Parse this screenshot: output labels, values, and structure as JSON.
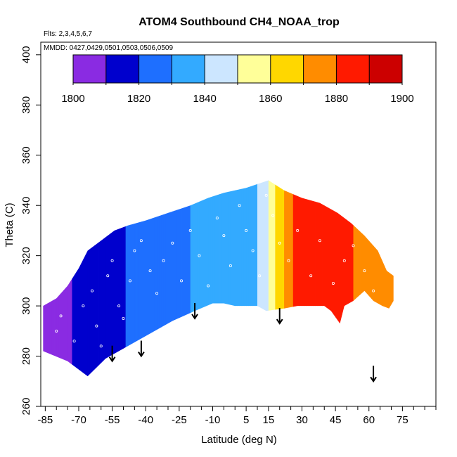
{
  "chart_data": {
    "type": "heatmap",
    "title": "ATOM4 Southbound CH4_NOAA_trop",
    "flights_label": "Flts: 2,3,4,5,6,7",
    "dates_label": "MMDD: 0427,0429,0501,0503,0506,0509",
    "xlabel": "Latitude (deg N)",
    "ylabel": "Theta (C)",
    "xlim": [
      -87,
      90
    ],
    "ylim": [
      260,
      405
    ],
    "x_ticks": [
      -85,
      -70,
      -55,
      -40,
      -25,
      -10,
      5,
      15,
      30,
      45,
      60,
      75
    ],
    "x_minor_step": 5,
    "y_ticks": [
      260,
      280,
      300,
      320,
      340,
      360,
      380,
      400
    ],
    "colorbar": {
      "min": 1800,
      "max": 1900,
      "step": 10,
      "labels": [
        "1800",
        "1820",
        "1840",
        "1860",
        "1880",
        "1900"
      ],
      "colors": [
        "#8a2be2",
        "#0000cd",
        "#1e6fff",
        "#33aaff",
        "#cce6ff",
        "#ffff99",
        "#ffd700",
        "#ff8c00",
        "#ff1a00",
        "#cc0000"
      ]
    },
    "field": {
      "lower_boundary": [
        [
          -86,
          282
        ],
        [
          -75,
          278
        ],
        [
          -66,
          272
        ],
        [
          -58,
          279
        ],
        [
          -48,
          284
        ],
        [
          -38,
          289
        ],
        [
          -28,
          294
        ],
        [
          -18,
          298
        ],
        [
          -10,
          301
        ],
        [
          -5,
          301
        ],
        [
          0,
          300
        ],
        [
          5,
          300
        ],
        [
          10,
          300
        ],
        [
          14,
          298
        ],
        [
          22,
          299
        ],
        [
          28,
          300
        ],
        [
          35,
          300
        ],
        [
          40,
          300
        ],
        [
          43,
          298
        ],
        [
          47,
          293
        ],
        [
          49,
          300
        ],
        [
          53,
          302
        ],
        [
          58,
          306
        ],
        [
          62,
          302
        ],
        [
          66,
          300
        ],
        [
          69,
          299
        ],
        [
          71,
          302
        ]
      ],
      "upper_boundary": [
        [
          -86,
          300
        ],
        [
          -80,
          303
        ],
        [
          -75,
          308
        ],
        [
          -70,
          315
        ],
        [
          -66,
          322
        ],
        [
          -60,
          326
        ],
        [
          -54,
          330
        ],
        [
          -48,
          332
        ],
        [
          -40,
          334
        ],
        [
          -30,
          337
        ],
        [
          -20,
          340
        ],
        [
          -12,
          343
        ],
        [
          -5,
          345
        ],
        [
          5,
          347
        ],
        [
          15,
          350
        ],
        [
          22,
          346
        ],
        [
          30,
          343
        ],
        [
          38,
          341
        ],
        [
          46,
          337
        ],
        [
          52,
          333
        ],
        [
          58,
          328
        ],
        [
          64,
          322
        ],
        [
          68,
          314
        ],
        [
          71,
          312
        ]
      ],
      "profile_by_latitude": [
        {
          "lat": -85,
          "value": 1805
        },
        {
          "lat": -75,
          "value": 1809
        },
        {
          "lat": -65,
          "value": 1813
        },
        {
          "lat": -55,
          "value": 1817
        },
        {
          "lat": -45,
          "value": 1822
        },
        {
          "lat": -35,
          "value": 1826
        },
        {
          "lat": -25,
          "value": 1829
        },
        {
          "lat": -15,
          "value": 1831
        },
        {
          "lat": -5,
          "value": 1833
        },
        {
          "lat": 5,
          "value": 1836
        },
        {
          "lat": 12,
          "value": 1842
        },
        {
          "lat": 16,
          "value": 1852
        },
        {
          "lat": 20,
          "value": 1866
        },
        {
          "lat": 25,
          "value": 1879
        },
        {
          "lat": 30,
          "value": 1883
        },
        {
          "lat": 40,
          "value": 1883
        },
        {
          "lat": 50,
          "value": 1881
        },
        {
          "lat": 60,
          "value": 1878
        },
        {
          "lat": 70,
          "value": 1872
        }
      ],
      "sample_points": [
        [
          -80,
          290
        ],
        [
          -78,
          296
        ],
        [
          -72,
          286
        ],
        [
          -68,
          300
        ],
        [
          -64,
          306
        ],
        [
          -62,
          292
        ],
        [
          -60,
          284
        ],
        [
          -57,
          312
        ],
        [
          -55,
          318
        ],
        [
          -52,
          300
        ],
        [
          -50,
          295
        ],
        [
          -47,
          310
        ],
        [
          -45,
          322
        ],
        [
          -42,
          326
        ],
        [
          -38,
          314
        ],
        [
          -35,
          305
        ],
        [
          -32,
          318
        ],
        [
          -28,
          325
        ],
        [
          -24,
          310
        ],
        [
          -20,
          330
        ],
        [
          -16,
          320
        ],
        [
          -12,
          308
        ],
        [
          -8,
          335
        ],
        [
          -5,
          328
        ],
        [
          -2,
          316
        ],
        [
          2,
          340
        ],
        [
          5,
          330
        ],
        [
          8,
          322
        ],
        [
          11,
          312
        ],
        [
          14,
          344
        ],
        [
          17,
          336
        ],
        [
          20,
          325
        ],
        [
          24,
          318
        ],
        [
          28,
          330
        ],
        [
          34,
          312
        ],
        [
          38,
          326
        ],
        [
          44,
          309
        ],
        [
          49,
          318
        ],
        [
          53,
          324
        ],
        [
          58,
          314
        ],
        [
          62,
          306
        ]
      ]
    },
    "arrows": [
      {
        "lat": -55,
        "theta": 278
      },
      {
        "lat": -42,
        "theta": 280
      },
      {
        "lat": -18,
        "theta": 295
      },
      {
        "lat": 20,
        "theta": 293
      },
      {
        "lat": 62,
        "theta": 270
      }
    ]
  }
}
